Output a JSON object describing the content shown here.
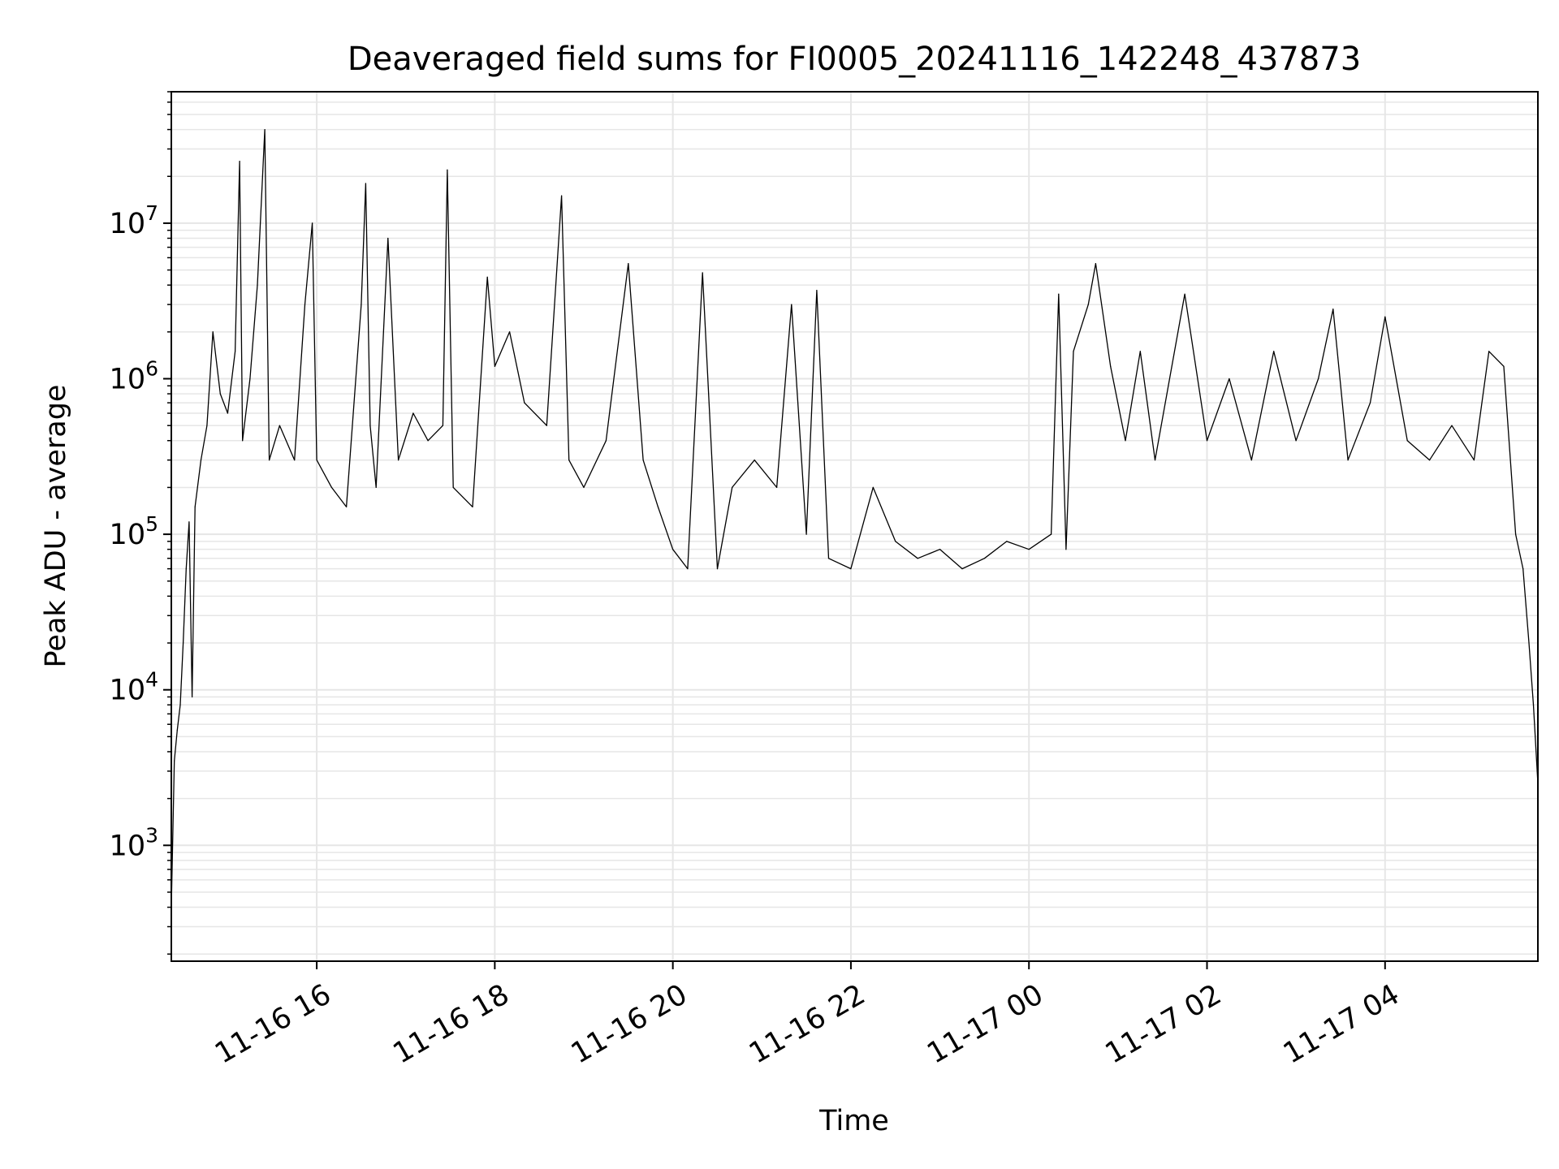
{
  "chart_data": {
    "type": "line",
    "title": "Deaveraged field sums for FI0005_20241116_142248_437873",
    "xlabel": "Time",
    "ylabel": "Peak ADU - average",
    "y_scale": "log",
    "ylim": [
      180,
      70000000
    ],
    "xlim": [
      "2024-11-16T14:22",
      "2024-11-17T05:43"
    ],
    "grid": "both, major and minor",
    "colors": {
      "line": "#000000",
      "grid": "#e6e6e6",
      "axes": "#000000"
    },
    "x_ticks": [
      {
        "t": "2024-11-16T16:00",
        "label": "11-16 16"
      },
      {
        "t": "2024-11-16T18:00",
        "label": "11-16 18"
      },
      {
        "t": "2024-11-16T20:00",
        "label": "11-16 20"
      },
      {
        "t": "2024-11-16T22:00",
        "label": "11-16 22"
      },
      {
        "t": "2024-11-17T00:00",
        "label": "11-17 00"
      },
      {
        "t": "2024-11-17T02:00",
        "label": "11-17 02"
      },
      {
        "t": "2024-11-17T04:00",
        "label": "11-17 04"
      }
    ],
    "y_ticks": [
      {
        "value": 1000,
        "base": "10",
        "exp": "3"
      },
      {
        "value": 10000,
        "base": "10",
        "exp": "4"
      },
      {
        "value": 100000,
        "base": "10",
        "exp": "5"
      },
      {
        "value": 1000000,
        "base": "10",
        "exp": "6"
      },
      {
        "value": 10000000,
        "base": "10",
        "exp": "7"
      }
    ],
    "series": [
      {
        "values_note": "sampled envelope",
        "points": [
          [
            "2024-11-16T14:22",
            400
          ],
          [
            "2024-11-16T14:24",
            3500
          ],
          [
            "2024-11-16T14:26",
            5500
          ],
          [
            "2024-11-16T14:28",
            8000
          ],
          [
            "2024-11-16T14:30",
            20000
          ],
          [
            "2024-11-16T14:32",
            60000
          ],
          [
            "2024-11-16T14:34",
            120000
          ],
          [
            "2024-11-16T14:36",
            9000
          ],
          [
            "2024-11-16T14:38",
            150000
          ],
          [
            "2024-11-16T14:42",
            300000
          ],
          [
            "2024-11-16T14:46",
            500000
          ],
          [
            "2024-11-16T14:50",
            2000000
          ],
          [
            "2024-11-16T14:55",
            800000
          ],
          [
            "2024-11-16T15:00",
            600000
          ],
          [
            "2024-11-16T15:05",
            1500000
          ],
          [
            "2024-11-16T15:08",
            25000000
          ],
          [
            "2024-11-16T15:10",
            400000
          ],
          [
            "2024-11-16T15:15",
            1000000
          ],
          [
            "2024-11-16T15:20",
            4000000
          ],
          [
            "2024-11-16T15:25",
            40000000
          ],
          [
            "2024-11-16T15:28",
            300000
          ],
          [
            "2024-11-16T15:35",
            500000
          ],
          [
            "2024-11-16T15:45",
            300000
          ],
          [
            "2024-11-16T15:52",
            3000000
          ],
          [
            "2024-11-16T15:57",
            10000000
          ],
          [
            "2024-11-16T16:00",
            300000
          ],
          [
            "2024-11-16T16:10",
            200000
          ],
          [
            "2024-11-16T16:20",
            150000
          ],
          [
            "2024-11-16T16:30",
            3000000
          ],
          [
            "2024-11-16T16:33",
            18000000
          ],
          [
            "2024-11-16T16:36",
            500000
          ],
          [
            "2024-11-16T16:40",
            200000
          ],
          [
            "2024-11-16T16:48",
            8000000
          ],
          [
            "2024-11-16T16:55",
            300000
          ],
          [
            "2024-11-16T17:05",
            600000
          ],
          [
            "2024-11-16T17:15",
            400000
          ],
          [
            "2024-11-16T17:25",
            500000
          ],
          [
            "2024-11-16T17:28",
            22000000
          ],
          [
            "2024-11-16T17:32",
            200000
          ],
          [
            "2024-11-16T17:45",
            150000
          ],
          [
            "2024-11-16T17:55",
            4500000
          ],
          [
            "2024-11-16T18:00",
            1200000
          ],
          [
            "2024-11-16T18:10",
            2000000
          ],
          [
            "2024-11-16T18:20",
            700000
          ],
          [
            "2024-11-16T18:35",
            500000
          ],
          [
            "2024-11-16T18:45",
            15000000
          ],
          [
            "2024-11-16T18:50",
            300000
          ],
          [
            "2024-11-16T19:00",
            200000
          ],
          [
            "2024-11-16T19:15",
            400000
          ],
          [
            "2024-11-16T19:30",
            5500000
          ],
          [
            "2024-11-16T19:40",
            300000
          ],
          [
            "2024-11-16T19:50",
            150000
          ],
          [
            "2024-11-16T20:00",
            80000
          ],
          [
            "2024-11-16T20:10",
            60000
          ],
          [
            "2024-11-16T20:20",
            4800000
          ],
          [
            "2024-11-16T20:30",
            60000
          ],
          [
            "2024-11-16T20:40",
            200000
          ],
          [
            "2024-11-16T20:55",
            300000
          ],
          [
            "2024-11-16T21:10",
            200000
          ],
          [
            "2024-11-16T21:20",
            3000000
          ],
          [
            "2024-11-16T21:30",
            100000
          ],
          [
            "2024-11-16T21:37",
            3700000
          ],
          [
            "2024-11-16T21:45",
            70000
          ],
          [
            "2024-11-16T22:00",
            60000
          ],
          [
            "2024-11-16T22:15",
            200000
          ],
          [
            "2024-11-16T22:30",
            90000
          ],
          [
            "2024-11-16T22:45",
            70000
          ],
          [
            "2024-11-16T23:00",
            80000
          ],
          [
            "2024-11-16T23:15",
            60000
          ],
          [
            "2024-11-16T23:30",
            70000
          ],
          [
            "2024-11-16T23:45",
            90000
          ],
          [
            "2024-11-17T00:00",
            80000
          ],
          [
            "2024-11-17T00:15",
            100000
          ],
          [
            "2024-11-17T00:20",
            3500000
          ],
          [
            "2024-11-17T00:25",
            80000
          ],
          [
            "2024-11-17T00:30",
            1500000
          ],
          [
            "2024-11-17T00:40",
            3000000
          ],
          [
            "2024-11-17T00:45",
            5500000
          ],
          [
            "2024-11-17T00:55",
            1200000
          ],
          [
            "2024-11-17T01:05",
            400000
          ],
          [
            "2024-11-17T01:15",
            1500000
          ],
          [
            "2024-11-17T01:25",
            300000
          ],
          [
            "2024-11-17T01:45",
            3500000
          ],
          [
            "2024-11-17T02:00",
            400000
          ],
          [
            "2024-11-17T02:15",
            1000000
          ],
          [
            "2024-11-17T02:30",
            300000
          ],
          [
            "2024-11-17T02:45",
            1500000
          ],
          [
            "2024-11-17T03:00",
            400000
          ],
          [
            "2024-11-17T03:15",
            1000000
          ],
          [
            "2024-11-17T03:25",
            2800000
          ],
          [
            "2024-11-17T03:35",
            300000
          ],
          [
            "2024-11-17T03:50",
            700000
          ],
          [
            "2024-11-17T04:00",
            2500000
          ],
          [
            "2024-11-17T04:15",
            400000
          ],
          [
            "2024-11-17T04:30",
            300000
          ],
          [
            "2024-11-17T04:45",
            500000
          ],
          [
            "2024-11-17T05:00",
            300000
          ],
          [
            "2024-11-17T05:10",
            1500000
          ],
          [
            "2024-11-17T05:20",
            1200000
          ],
          [
            "2024-11-17T05:28",
            100000
          ],
          [
            "2024-11-17T05:33",
            60000
          ],
          [
            "2024-11-17T05:37",
            20000
          ],
          [
            "2024-11-17T05:40",
            8000
          ],
          [
            "2024-11-17T05:43",
            2500
          ]
        ]
      }
    ]
  }
}
